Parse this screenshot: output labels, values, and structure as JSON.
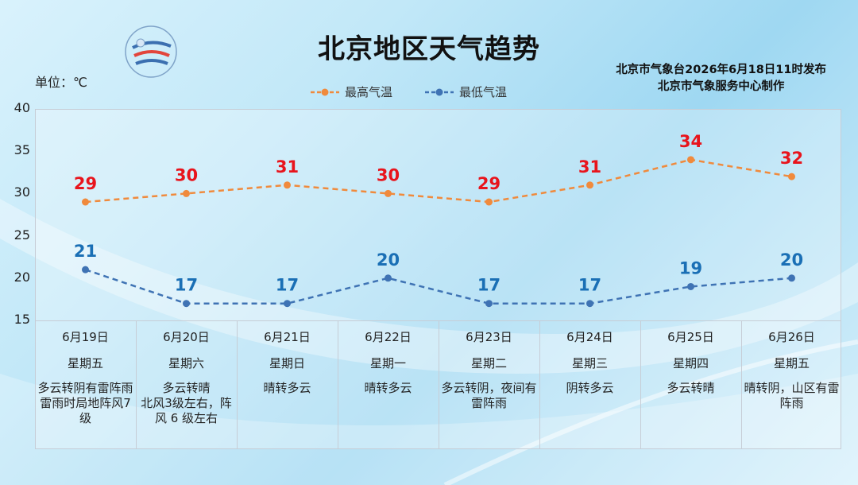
{
  "title": "北京地区天气趋势",
  "issuer": {
    "line1": "北京市气象台2026年6月18日11时发布",
    "line2": "北京市气象服务中心制作"
  },
  "unit_label": "单位：℃",
  "legend": {
    "high": "最高气温",
    "low": "最低气温"
  },
  "colors": {
    "high": "#f08a3c",
    "high_label": "#e8141c",
    "low": "#3f73b4",
    "low_label": "#1a6fb5"
  },
  "days": [
    {
      "date": "6月19日",
      "weekday": "星期五",
      "weather": "多云转阴有雷阵雨\n雷雨时局地阵风7 级"
    },
    {
      "date": "6月20日",
      "weekday": "星期六",
      "weather": "多云转晴\n北风3级左右，阵风 6 级左右"
    },
    {
      "date": "6月21日",
      "weekday": "星期日",
      "weather": "晴转多云"
    },
    {
      "date": "6月22日",
      "weekday": "星期一",
      "weather": "晴转多云"
    },
    {
      "date": "6月23日",
      "weekday": "星期二",
      "weather": "多云转阴，夜间有雷阵雨"
    },
    {
      "date": "6月24日",
      "weekday": "星期三",
      "weather": "阴转多云"
    },
    {
      "date": "6月25日",
      "weekday": "星期四",
      "weather": "多云转晴"
    },
    {
      "date": "6月26日",
      "weekday": "星期五",
      "weather": "晴转阴，山区有雷阵雨"
    }
  ],
  "chart_data": {
    "type": "line",
    "categories": [
      "6月19日",
      "6月20日",
      "6月21日",
      "6月22日",
      "6月23日",
      "6月24日",
      "6月25日",
      "6月26日"
    ],
    "series": [
      {
        "name": "最高气温",
        "values": [
          29,
          30,
          31,
          30,
          29,
          31,
          34,
          32
        ]
      },
      {
        "name": "最低气温",
        "values": [
          21,
          17,
          17,
          20,
          17,
          17,
          19,
          20
        ]
      }
    ],
    "ylabel": "单位：℃",
    "ylim": [
      15,
      40
    ],
    "yticks": [
      15,
      20,
      25,
      30,
      35,
      40
    ],
    "legend_position": "top-center",
    "grid": false,
    "line_style": "dashed"
  }
}
